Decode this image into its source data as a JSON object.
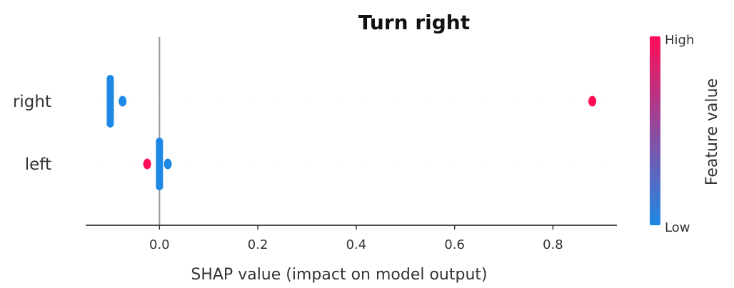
{
  "chart_data": {
    "type": "scatter",
    "title": "Turn right",
    "xlabel": "SHAP value (impact on model output)",
    "ylabel": "",
    "xlim": [
      -0.15,
      0.93
    ],
    "xticks": [
      "0.0",
      "0.2",
      "0.4",
      "0.6",
      "0.8"
    ],
    "xtick_values": [
      0.0,
      0.2,
      0.4,
      0.6,
      0.8
    ],
    "grid": false,
    "features": [
      "right",
      "left"
    ],
    "series": [
      {
        "feature": "right",
        "points": [
          {
            "x": -0.1,
            "count": 20,
            "feature_value": "Low"
          },
          {
            "x": -0.075,
            "count": 1,
            "feature_value": "Low"
          },
          {
            "x": 0.88,
            "count": 1,
            "feature_value": "High"
          }
        ]
      },
      {
        "feature": "left",
        "points": [
          {
            "x": -0.025,
            "count": 1,
            "feature_value": "High"
          },
          {
            "x": 0.0,
            "count": 20,
            "feature_value": "Low"
          },
          {
            "x": 0.017,
            "count": 1,
            "feature_value": "Low"
          }
        ]
      }
    ],
    "colorbar": {
      "label": "Feature value",
      "high_label": "High",
      "low_label": "Low",
      "high_color": "#ff0d57",
      "low_color": "#1e88e5"
    },
    "zero_line_color": "#999999"
  }
}
